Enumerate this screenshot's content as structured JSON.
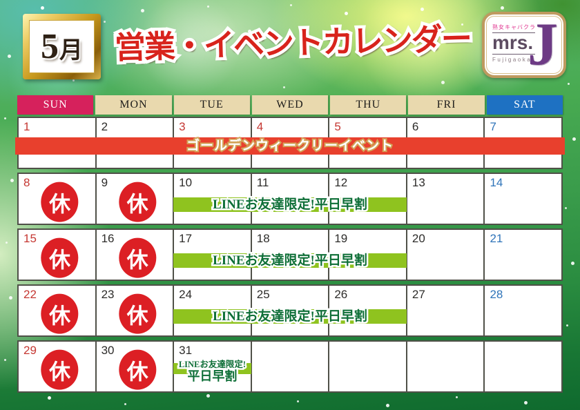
{
  "theme": {
    "sun_header_bg": "#d6215c",
    "weekday_header_bg": "#e9d9ae",
    "sat_header_bg": "#1e71c2",
    "red_banner_bg": "#e8402d",
    "green_banner_bg": "#8fc31f",
    "closed_circle_red": "#dc1f24",
    "date_red": "#c53732",
    "date_blue": "#2f74b9",
    "title_red": "#d8231c"
  },
  "header": {
    "month_badge": {
      "number": "5",
      "suffix": "月"
    },
    "title": "営業・イベントカレンダー",
    "logo": {
      "tagline": "熟女キャバクラ",
      "brand": "mrs.",
      "location": "Fujigaoka",
      "initial": "J"
    }
  },
  "calendar": {
    "day_headers": [
      {
        "label": "SUN",
        "style": "sun"
      },
      {
        "label": "MON",
        "style": "weekday"
      },
      {
        "label": "TUE",
        "style": "weekday"
      },
      {
        "label": "WED",
        "style": "weekday"
      },
      {
        "label": "THU",
        "style": "weekday"
      },
      {
        "label": "FRI",
        "style": "weekday"
      },
      {
        "label": "SAT",
        "style": "sat"
      }
    ],
    "closed_label": "休",
    "banners": {
      "golden_week": {
        "text": "ゴールデンウィークリーイベント"
      },
      "line_discount": {
        "text": "LINEお友達限定!平日早割"
      },
      "line_discount_line1": "LINEお友達限定!",
      "line_discount_line2": "平日早割"
    },
    "weeks": [
      {
        "banner": "golden_week",
        "days": [
          {
            "num": "1",
            "color": "red"
          },
          {
            "num": "2",
            "color": "black"
          },
          {
            "num": "3",
            "color": "red"
          },
          {
            "num": "4",
            "color": "red"
          },
          {
            "num": "5",
            "color": "red"
          },
          {
            "num": "6",
            "color": "black"
          },
          {
            "num": "7",
            "color": "blue"
          }
        ]
      },
      {
        "banner": "line_discount",
        "days": [
          {
            "num": "8",
            "color": "red",
            "closed": true
          },
          {
            "num": "9",
            "color": "black",
            "closed": true
          },
          {
            "num": "10",
            "color": "black"
          },
          {
            "num": "11",
            "color": "black"
          },
          {
            "num": "12",
            "color": "black"
          },
          {
            "num": "13",
            "color": "black"
          },
          {
            "num": "14",
            "color": "blue"
          }
        ]
      },
      {
        "banner": "line_discount",
        "days": [
          {
            "num": "15",
            "color": "red",
            "closed": true
          },
          {
            "num": "16",
            "color": "black",
            "closed": true
          },
          {
            "num": "17",
            "color": "black"
          },
          {
            "num": "18",
            "color": "black"
          },
          {
            "num": "19",
            "color": "black"
          },
          {
            "num": "20",
            "color": "black"
          },
          {
            "num": "21",
            "color": "blue"
          }
        ]
      },
      {
        "banner": "line_discount",
        "days": [
          {
            "num": "22",
            "color": "red",
            "closed": true
          },
          {
            "num": "23",
            "color": "black",
            "closed": true
          },
          {
            "num": "24",
            "color": "black"
          },
          {
            "num": "25",
            "color": "black"
          },
          {
            "num": "26",
            "color": "black"
          },
          {
            "num": "27",
            "color": "black"
          },
          {
            "num": "28",
            "color": "blue"
          }
        ]
      },
      {
        "banner": "",
        "cell_banner_col": 2,
        "days": [
          {
            "num": "29",
            "color": "red",
            "closed": true
          },
          {
            "num": "30",
            "color": "black",
            "closed": true
          },
          {
            "num": "31",
            "color": "black"
          },
          {
            "num": ""
          },
          {
            "num": ""
          },
          {
            "num": ""
          },
          {
            "num": ""
          }
        ]
      }
    ]
  }
}
